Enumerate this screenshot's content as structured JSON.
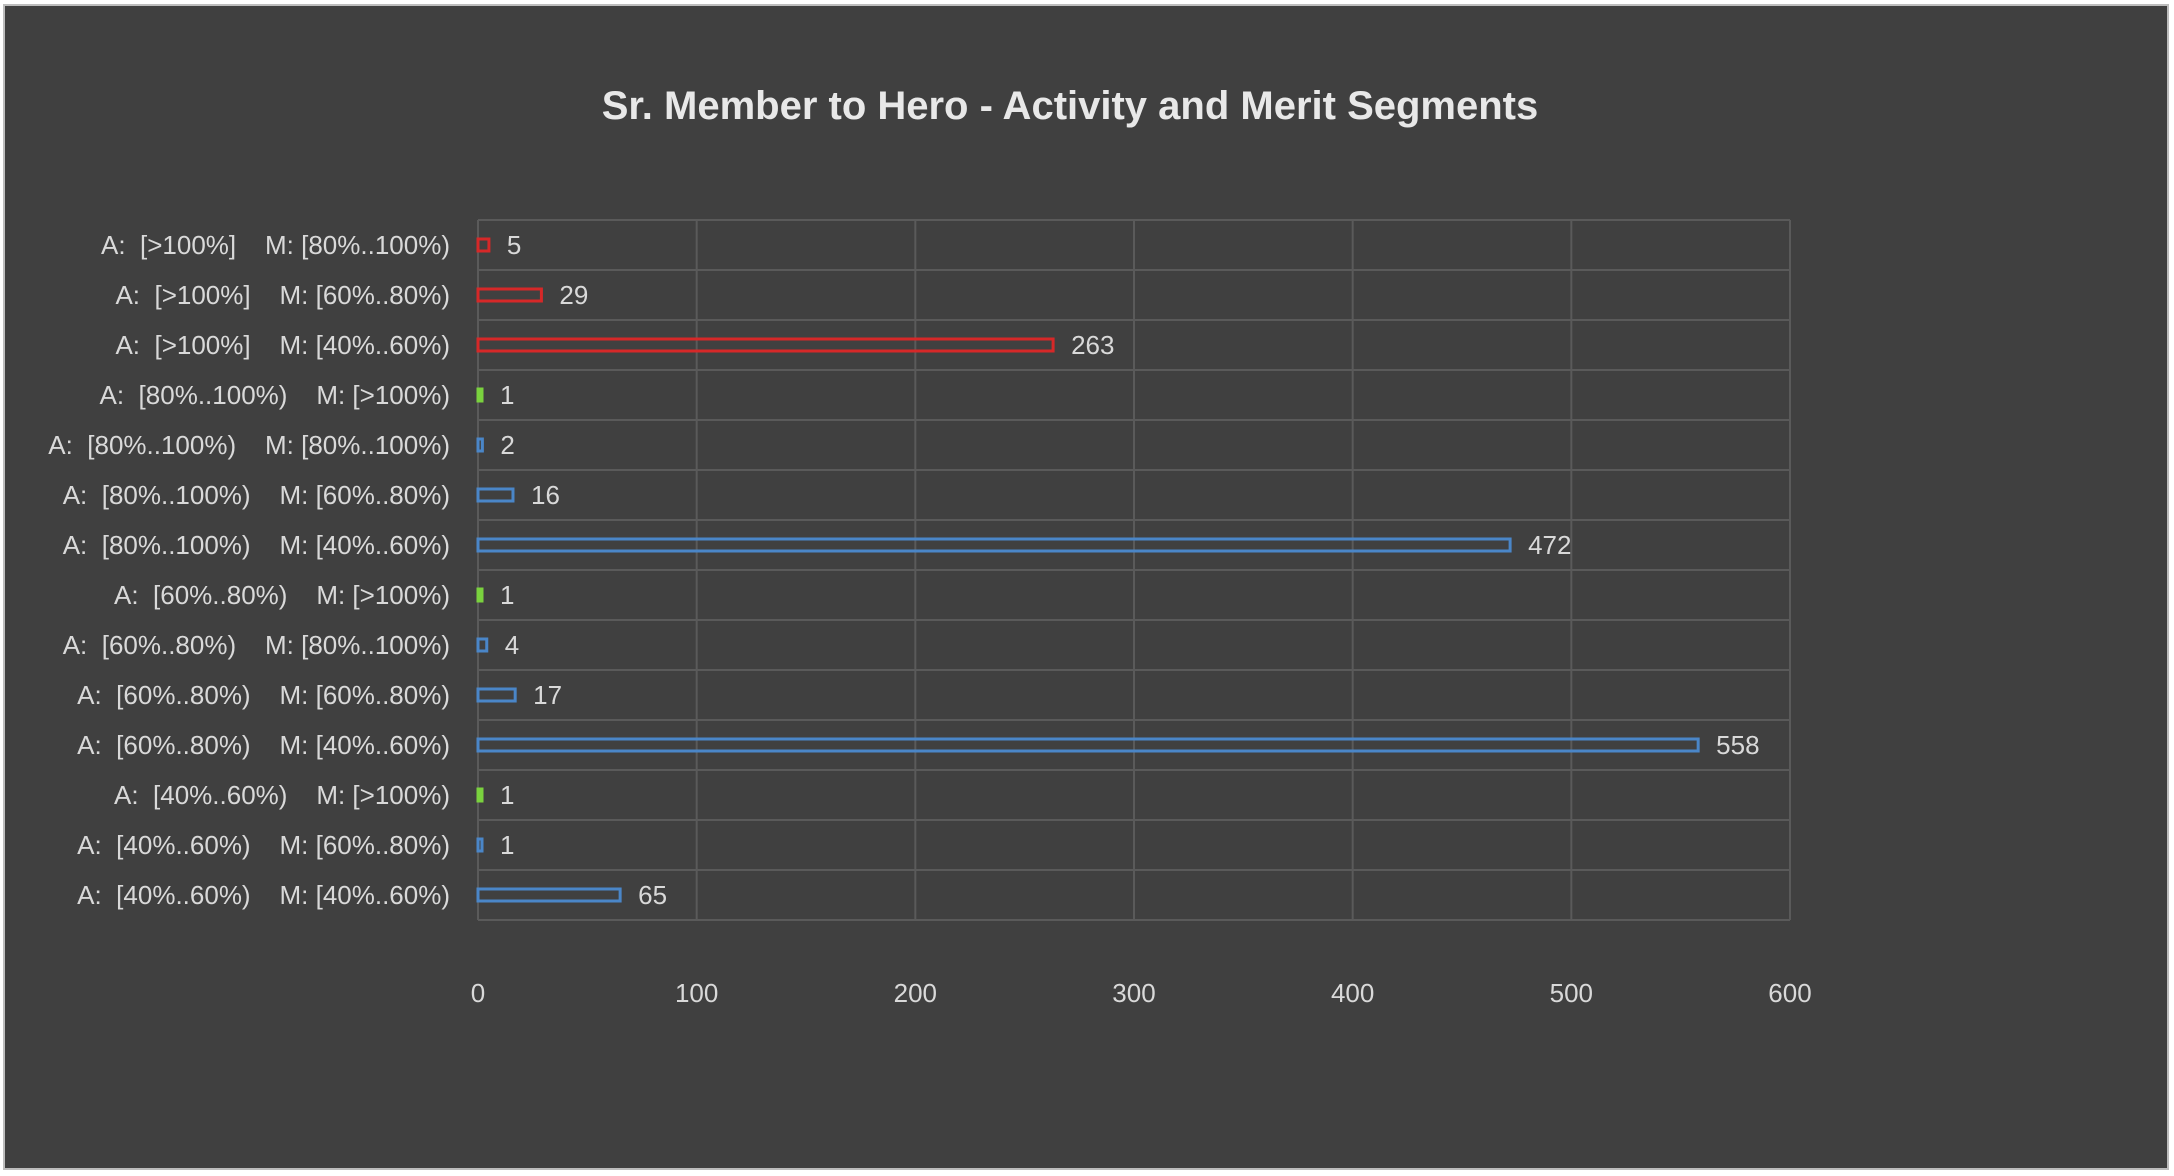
{
  "colors": {
    "background": "#404040",
    "gridline": "#5a5a5a",
    "text": "#d9d9d9",
    "red_segment": "#d62828",
    "blue_segment": "#4a86c8",
    "green_segment": "#7ad23e"
  },
  "chart_data": {
    "type": "bar",
    "orientation": "horizontal",
    "title": "Sr. Member to Hero  - Activity and Merit Segments",
    "xlim": [
      0,
      600
    ],
    "x_ticks": [
      0,
      100,
      200,
      300,
      400,
      500,
      600
    ],
    "grid": true,
    "legend": "none",
    "categories": [
      "A:  [>100%]    M: [80%..100%)",
      "A:  [>100%]    M: [60%..80%)",
      "A:  [>100%]    M: [40%..60%)",
      "A:  [80%..100%)    M: [>100%)",
      "A:  [80%..100%)    M: [80%..100%)",
      "A:  [80%..100%)    M: [60%..80%)",
      "A:  [80%..100%)    M: [40%..60%)",
      "A:  [60%..80%)    M: [>100%)",
      "A:  [60%..80%)    M: [80%..100%)",
      "A:  [60%..80%)    M: [60%..80%)",
      "A:  [60%..80%)    M: [40%..60%)",
      "A:  [40%..60%)    M: [>100%)",
      "A:  [40%..60%)    M: [60%..80%)",
      "A:  [40%..60%)    M: [40%..60%)"
    ],
    "values": [
      5,
      29,
      263,
      1,
      2,
      16,
      472,
      1,
      4,
      17,
      558,
      1,
      1,
      65
    ],
    "bar_colors": [
      "red",
      "red",
      "red",
      "green",
      "blue",
      "blue",
      "blue",
      "green",
      "blue",
      "blue",
      "blue",
      "green",
      "blue",
      "blue"
    ]
  }
}
